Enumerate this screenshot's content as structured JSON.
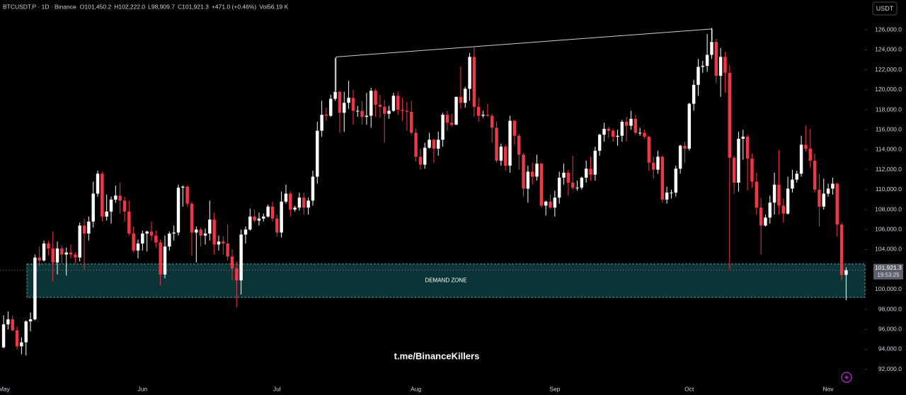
{
  "chart_data": {
    "type": "candlestick",
    "symbol": "BTCUSDT.P · 1D · Binance",
    "legend_text": [
      "O101,450.2",
      "H102,222.0",
      "L98,909.7",
      "C101,921.3",
      "+471.0 (+0.46%)",
      "Vol56.19 K"
    ],
    "currency_button": "USDT",
    "watermark": "t.me/BinanceKillers",
    "up_color": "#ffffff",
    "down_color": "#f23645",
    "grid": false,
    "xlim": [
      -0.8,
      192.2
    ],
    "ylim": [
      90700,
      129000
    ],
    "yticks": [
      {
        "value": 92000,
        "label": "92,000.0"
      },
      {
        "value": 94000,
        "label": "94,000.0"
      },
      {
        "value": 96000,
        "label": "96,000.0"
      },
      {
        "value": 98000,
        "label": "98,000.0"
      },
      {
        "value": 100000,
        "label": "100,000.0"
      },
      {
        "value": 102000,
        "label": "102,000.0"
      },
      {
        "value": 104000,
        "label": "104,000.0"
      },
      {
        "value": 106000,
        "label": "106,000.0"
      },
      {
        "value": 108000,
        "label": "108,000.0"
      },
      {
        "value": 110000,
        "label": "110,000.0"
      },
      {
        "value": 112000,
        "label": "112,000.0"
      },
      {
        "value": 114000,
        "label": "114,000.0"
      },
      {
        "value": 116000,
        "label": "116,000.0"
      },
      {
        "value": 118000,
        "label": "118,000.0"
      },
      {
        "value": 120000,
        "label": "120,000.0"
      },
      {
        "value": 122000,
        "label": "122,000.0"
      },
      {
        "value": 124000,
        "label": "124,000.0"
      },
      {
        "value": 126000,
        "label": "126,000.0"
      }
    ],
    "last_price": {
      "value": 101921.3,
      "label": "101,921.3"
    },
    "countdown": "19:53:25",
    "zone": {
      "label": "DEMAND ZONE",
      "range": [
        99200,
        102550
      ],
      "x_start": 5.2,
      "color": "#0b3436",
      "border": "#5e9a9a"
    },
    "trendline": {
      "x": [
        74.2,
        158.1
      ],
      "y": [
        123300,
        126100
      ],
      "drop_to": [
        119900,
        124900
      ],
      "color": "#d0d0d0"
    },
    "categories": [
      "May",
      null,
      null,
      null,
      null,
      null,
      null,
      null,
      null,
      null,
      null,
      null,
      null,
      null,
      null,
      null,
      null,
      null,
      null,
      null,
      null,
      null,
      null,
      null,
      null,
      null,
      null,
      null,
      null,
      null,
      null,
      "Jun",
      null,
      null,
      null,
      null,
      null,
      null,
      null,
      null,
      null,
      null,
      null,
      null,
      null,
      null,
      null,
      null,
      null,
      null,
      null,
      null,
      null,
      null,
      null,
      null,
      null,
      null,
      null,
      null,
      null,
      "Jul",
      null,
      null,
      null,
      null,
      null,
      null,
      null,
      null,
      null,
      null,
      null,
      null,
      null,
      null,
      null,
      null,
      null,
      null,
      null,
      null,
      null,
      null,
      null,
      null,
      null,
      null,
      null,
      null,
      null,
      null,
      "Aug",
      null,
      null,
      null,
      null,
      null,
      null,
      null,
      null,
      null,
      null,
      null,
      null,
      null,
      null,
      null,
      null,
      null,
      null,
      null,
      null,
      null,
      null,
      null,
      null,
      null,
      null,
      null,
      null,
      null,
      null,
      "Sep",
      null,
      null,
      null,
      null,
      null,
      null,
      null,
      null,
      null,
      null,
      null,
      null,
      null,
      null,
      null,
      null,
      null,
      null,
      null,
      null,
      null,
      null,
      null,
      null,
      null,
      null,
      null,
      null,
      null,
      "Oct",
      null,
      null,
      null,
      null,
      null,
      null,
      null,
      null,
      null,
      null,
      null,
      null,
      null,
      null,
      null,
      null,
      null,
      null,
      null,
      null,
      null,
      null,
      null,
      null,
      null,
      null,
      null,
      null,
      null,
      null,
      "Nov",
      null,
      null,
      null,
      null
    ],
    "ohlc": [
      [
        94200,
        97400,
        94100,
        96500
      ],
      [
        96500,
        97800,
        96000,
        97000
      ],
      [
        97000,
        97400,
        95800,
        95900
      ],
      [
        95900,
        96300,
        94000,
        94300
      ],
      [
        94300,
        95200,
        93500,
        94700
      ],
      [
        94700,
        96900,
        93400,
        96800
      ],
      [
        96800,
        97700,
        95800,
        97000
      ],
      [
        97000,
        103500,
        96900,
        103200
      ],
      [
        103200,
        104300,
        102300,
        102900
      ],
      [
        102900,
        104900,
        102800,
        104600
      ],
      [
        104600,
        104900,
        103400,
        104100
      ],
      [
        104100,
        105800,
        100800,
        102700
      ],
      [
        102700,
        104800,
        101500,
        104100
      ],
      [
        104100,
        104400,
        102600,
        103500
      ],
      [
        103500,
        104200,
        101400,
        103700
      ],
      [
        103700,
        104500,
        103100,
        103500
      ],
      [
        103500,
        103700,
        102600,
        103200
      ],
      [
        103200,
        106700,
        102800,
        106400
      ],
      [
        106400,
        107100,
        102000,
        105600
      ],
      [
        105600,
        107300,
        104900,
        106800
      ],
      [
        106800,
        110800,
        106200,
        109600
      ],
      [
        109600,
        111900,
        109300,
        111600
      ],
      [
        111600,
        111800,
        106800,
        107300
      ],
      [
        107300,
        109500,
        106900,
        107800
      ],
      [
        107800,
        109300,
        106600,
        109000
      ],
      [
        109000,
        110400,
        108700,
        109400
      ],
      [
        109400,
        110700,
        107600,
        108900
      ],
      [
        108900,
        109300,
        106800,
        107800
      ],
      [
        107800,
        108900,
        105400,
        105600
      ],
      [
        105600,
        106300,
        103700,
        103900
      ],
      [
        103900,
        105000,
        103100,
        104600
      ],
      [
        104600,
        105900,
        103900,
        105600
      ],
      [
        105600,
        105900,
        103800,
        105800
      ],
      [
        105800,
        106800,
        104900,
        105400
      ],
      [
        105400,
        105900,
        104200,
        104700
      ],
      [
        104700,
        105000,
        100400,
        101500
      ],
      [
        101500,
        105400,
        101100,
        104300
      ],
      [
        104300,
        105800,
        103900,
        105600
      ],
      [
        105600,
        106400,
        104900,
        105700
      ],
      [
        105700,
        110500,
        105400,
        110200
      ],
      [
        110200,
        110400,
        108300,
        110300
      ],
      [
        110300,
        110400,
        108300,
        108600
      ],
      [
        108600,
        108800,
        103400,
        105700
      ],
      [
        105700,
        106300,
        102700,
        106000
      ],
      [
        106000,
        106200,
        104300,
        105400
      ],
      [
        105400,
        106100,
        104500,
        105600
      ],
      [
        105600,
        108900,
        104900,
        107000
      ],
      [
        107000,
        107700,
        103500,
        104500
      ],
      [
        104500,
        105400,
        103900,
        104800
      ],
      [
        104800,
        105300,
        103500,
        104600
      ],
      [
        104600,
        106500,
        102900,
        103300
      ],
      [
        103300,
        104000,
        100900,
        102100
      ],
      [
        102100,
        102800,
        98200,
        100900
      ],
      [
        100900,
        106000,
        99500,
        105500
      ],
      [
        105500,
        106300,
        104600,
        106000
      ],
      [
        106000,
        108100,
        105900,
        107300
      ],
      [
        107300,
        108000,
        106700,
        106900
      ],
      [
        106900,
        107700,
        106400,
        107100
      ],
      [
        107100,
        107600,
        106800,
        107300
      ],
      [
        107300,
        108500,
        107200,
        108300
      ],
      [
        108300,
        108800,
        106800,
        107100
      ],
      [
        107100,
        107500,
        105300,
        105700
      ],
      [
        105700,
        109800,
        105200,
        108800
      ],
      [
        108800,
        110500,
        108600,
        109600
      ],
      [
        109600,
        109800,
        107300,
        108000
      ],
      [
        108000,
        108400,
        107800,
        108200
      ],
      [
        108200,
        109700,
        107900,
        109200
      ],
      [
        109200,
        109700,
        107500,
        108200
      ],
      [
        108200,
        109200,
        107500,
        108900
      ],
      [
        108900,
        111900,
        108400,
        111300
      ],
      [
        111300,
        116800,
        110600,
        115900
      ],
      [
        115900,
        118900,
        115300,
        117500
      ],
      [
        117500,
        118200,
        116900,
        117400
      ],
      [
        117400,
        119500,
        117300,
        119100
      ],
      [
        119100,
        123200,
        118900,
        119800
      ],
      [
        119800,
        119900,
        115700,
        117700
      ],
      [
        117700,
        119800,
        115800,
        118700
      ],
      [
        118700,
        120900,
        118100,
        119200
      ],
      [
        119200,
        120000,
        116500,
        117900
      ],
      [
        117900,
        118400,
        117300,
        117900
      ],
      [
        117900,
        118900,
        116500,
        117300
      ],
      [
        117300,
        119700,
        116500,
        117400
      ],
      [
        117400,
        120200,
        116200,
        119900
      ],
      [
        119900,
        120100,
        117300,
        118500
      ],
      [
        118500,
        119500,
        117200,
        118300
      ],
      [
        118300,
        119000,
        114700,
        117600
      ],
      [
        117600,
        118400,
        117100,
        117900
      ],
      [
        117900,
        119700,
        117800,
        119400
      ],
      [
        119400,
        119800,
        117500,
        118000
      ],
      [
        118000,
        119200,
        116900,
        117900
      ],
      [
        117900,
        118800,
        115900,
        117800
      ],
      [
        117800,
        118900,
        115500,
        115700
      ],
      [
        115700,
        116100,
        112800,
        113300
      ],
      [
        113300,
        114100,
        112000,
        112500
      ],
      [
        112500,
        114700,
        112100,
        114200
      ],
      [
        114200,
        115700,
        114100,
        115000
      ],
      [
        115000,
        115100,
        112700,
        114100
      ],
      [
        114100,
        115800,
        113400,
        115000
      ],
      [
        115000,
        117700,
        114300,
        117500
      ],
      [
        117500,
        117900,
        115900,
        116700
      ],
      [
        116700,
        117600,
        116300,
        116500
      ],
      [
        116500,
        119300,
        116500,
        119300
      ],
      [
        119300,
        122300,
        118100,
        118700
      ],
      [
        118700,
        120300,
        118200,
        120100
      ],
      [
        120100,
        123700,
        118900,
        123300
      ],
      [
        123300,
        124400,
        117300,
        118300
      ],
      [
        118300,
        119200,
        116800,
        117400
      ],
      [
        117400,
        117900,
        117200,
        117500
      ],
      [
        117500,
        118600,
        117300,
        117400
      ],
      [
        117400,
        117600,
        114700,
        116200
      ],
      [
        116200,
        116800,
        112700,
        112900
      ],
      [
        112900,
        114600,
        112400,
        114300
      ],
      [
        114300,
        114500,
        111900,
        112400
      ],
      [
        112400,
        117400,
        111700,
        116900
      ],
      [
        116900,
        117000,
        114500,
        115400
      ],
      [
        115400,
        115600,
        112000,
        113500
      ],
      [
        113500,
        113700,
        109300,
        110100
      ],
      [
        110100,
        112400,
        108700,
        111800
      ],
      [
        111800,
        112700,
        110500,
        111300
      ],
      [
        111300,
        113500,
        110900,
        112600
      ],
      [
        112600,
        112700,
        108200,
        108400
      ],
      [
        108400,
        108900,
        107400,
        108800
      ],
      [
        108800,
        109500,
        108100,
        108200
      ],
      [
        108200,
        109900,
        107300,
        109200
      ],
      [
        109200,
        111800,
        108600,
        111200
      ],
      [
        111200,
        112600,
        110500,
        111700
      ],
      [
        111700,
        112000,
        109400,
        110700
      ],
      [
        110700,
        113400,
        110000,
        110200
      ],
      [
        110200,
        110900,
        109900,
        110200
      ],
      [
        110200,
        111300,
        110000,
        111200
      ],
      [
        111200,
        112900,
        110700,
        112100
      ],
      [
        112100,
        113300,
        110900,
        111500
      ],
      [
        111500,
        114300,
        110900,
        113900
      ],
      [
        113900,
        115600,
        113400,
        115500
      ],
      [
        115500,
        116700,
        114800,
        116100
      ],
      [
        116100,
        116300,
        115200,
        115900
      ],
      [
        115900,
        116100,
        114800,
        115300
      ],
      [
        115300,
        116000,
        114400,
        115400
      ],
      [
        115400,
        117000,
        114800,
        116800
      ],
      [
        116800,
        117300,
        114800,
        116400
      ],
      [
        116400,
        117900,
        116000,
        117100
      ],
      [
        117100,
        117500,
        115500,
        115700
      ],
      [
        115700,
        116200,
        115400,
        115700
      ],
      [
        115700,
        116000,
        115100,
        115300
      ],
      [
        115300,
        115400,
        111900,
        112700
      ],
      [
        112700,
        113300,
        111100,
        112000
      ],
      [
        112000,
        113900,
        111600,
        113300
      ],
      [
        113300,
        113400,
        108700,
        109000
      ],
      [
        109000,
        110300,
        108600,
        109700
      ],
      [
        109700,
        110000,
        109100,
        109700
      ],
      [
        109700,
        112400,
        109300,
        112100
      ],
      [
        112100,
        114500,
        111600,
        114400
      ],
      [
        114400,
        114800,
        112700,
        114100
      ],
      [
        114100,
        118700,
        113900,
        118600
      ],
      [
        118600,
        121000,
        117900,
        120500
      ],
      [
        120500,
        123100,
        119400,
        122300
      ],
      [
        122300,
        122900,
        121700,
        122400
      ],
      [
        122400,
        125600,
        121800,
        123500
      ],
      [
        123500,
        126200,
        123100,
        124800
      ],
      [
        124800,
        125100,
        120700,
        121400
      ],
      [
        121400,
        124200,
        119300,
        123300
      ],
      [
        123300,
        123800,
        119700,
        121700
      ],
      [
        121700,
        122500,
        102000,
        113200
      ],
      [
        113200,
        113400,
        109600,
        110700
      ],
      [
        110700,
        115800,
        109800,
        115100
      ],
      [
        115100,
        116000,
        113000,
        115300
      ],
      [
        115300,
        115500,
        109900,
        113100
      ],
      [
        113100,
        113600,
        110200,
        110800
      ],
      [
        110800,
        111700,
        107500,
        108200
      ],
      [
        108200,
        109200,
        103500,
        106400
      ],
      [
        106400,
        107500,
        106300,
        107200
      ],
      [
        107200,
        109400,
        106600,
        108700
      ],
      [
        108700,
        111700,
        107500,
        110500
      ],
      [
        110500,
        114000,
        107500,
        108400
      ],
      [
        108400,
        109100,
        106700,
        107600
      ],
      [
        107600,
        111300,
        107500,
        110100
      ],
      [
        110100,
        112000,
        109700,
        111000
      ],
      [
        111000,
        111900,
        110700,
        111600
      ],
      [
        111600,
        115400,
        111300,
        114500
      ],
      [
        114500,
        116400,
        113800,
        114100
      ],
      [
        114100,
        116100,
        112200,
        112900
      ],
      [
        112900,
        113600,
        109700,
        110000
      ],
      [
        110000,
        111600,
        106300,
        108300
      ],
      [
        108300,
        111100,
        108000,
        109600
      ],
      [
        109600,
        110600,
        109300,
        110100
      ],
      [
        110100,
        111200,
        109500,
        110600
      ],
      [
        110600,
        110700,
        105300,
        106500
      ],
      [
        106500,
        106700,
        100900,
        101450.2
      ],
      [
        101450.2,
        102222.0,
        98909.7,
        101921.3
      ]
    ]
  }
}
